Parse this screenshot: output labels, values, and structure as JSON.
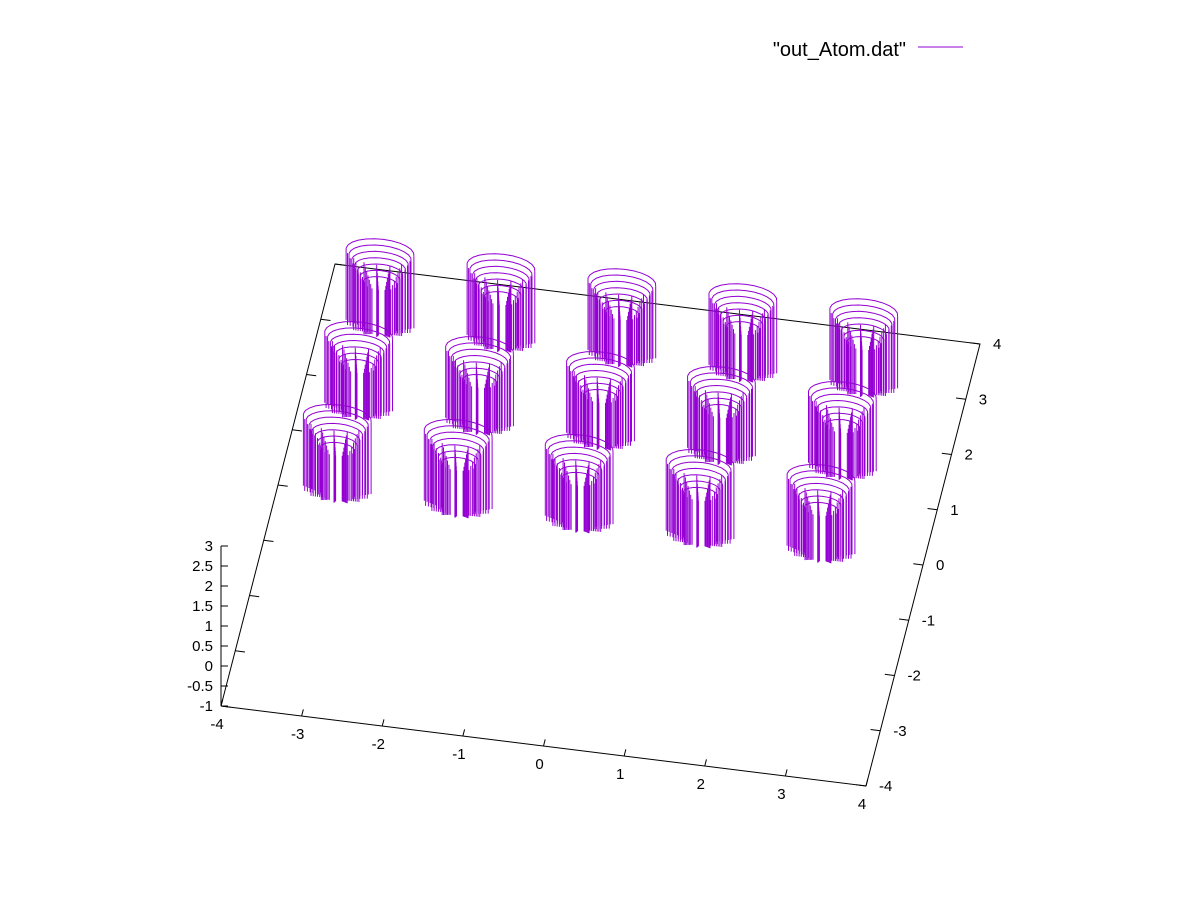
{
  "chart_data": {
    "type": "surface",
    "legend": {
      "entries": [
        {
          "label": "\"out_Atom.dat\"",
          "color": "#9400d3"
        }
      ],
      "position": "top-right"
    },
    "x_axis": {
      "ticks": [
        "-4",
        "-3",
        "-2",
        "-1",
        "0",
        "1",
        "2",
        "3",
        "4"
      ],
      "range": [
        -4,
        4
      ]
    },
    "y_axis": {
      "ticks": [
        "-4",
        "-3",
        "-2",
        "-1",
        "0",
        "1",
        "2",
        "3",
        "4"
      ],
      "range": [
        -4,
        4
      ]
    },
    "z_axis": {
      "ticks": [
        "-1",
        "-0.5",
        "0",
        "0.5",
        "1",
        "1.5",
        "2",
        "2.5",
        "3"
      ],
      "range": [
        -1,
        3
      ]
    },
    "series": [
      {
        "color": "#9400d3",
        "atoms": [
          {
            "x": -3,
            "y": 1.5
          },
          {
            "x": -3,
            "y": 0
          },
          {
            "x": -3,
            "y": -1.5
          },
          {
            "x": -1.5,
            "y": 1.5
          },
          {
            "x": -1.5,
            "y": 0
          },
          {
            "x": -1.5,
            "y": -1.5
          },
          {
            "x": 0,
            "y": 1.5
          },
          {
            "x": 0,
            "y": 0
          },
          {
            "x": 0,
            "y": -1.5
          },
          {
            "x": 1.5,
            "y": 1.5
          },
          {
            "x": 1.5,
            "y": 0
          },
          {
            "x": 1.5,
            "y": -1.5
          },
          {
            "x": 3,
            "y": 1.5
          },
          {
            "x": 3,
            "y": 0
          },
          {
            "x": 3,
            "y": -1.5
          }
        ],
        "peak_z": 3
      }
    ]
  }
}
